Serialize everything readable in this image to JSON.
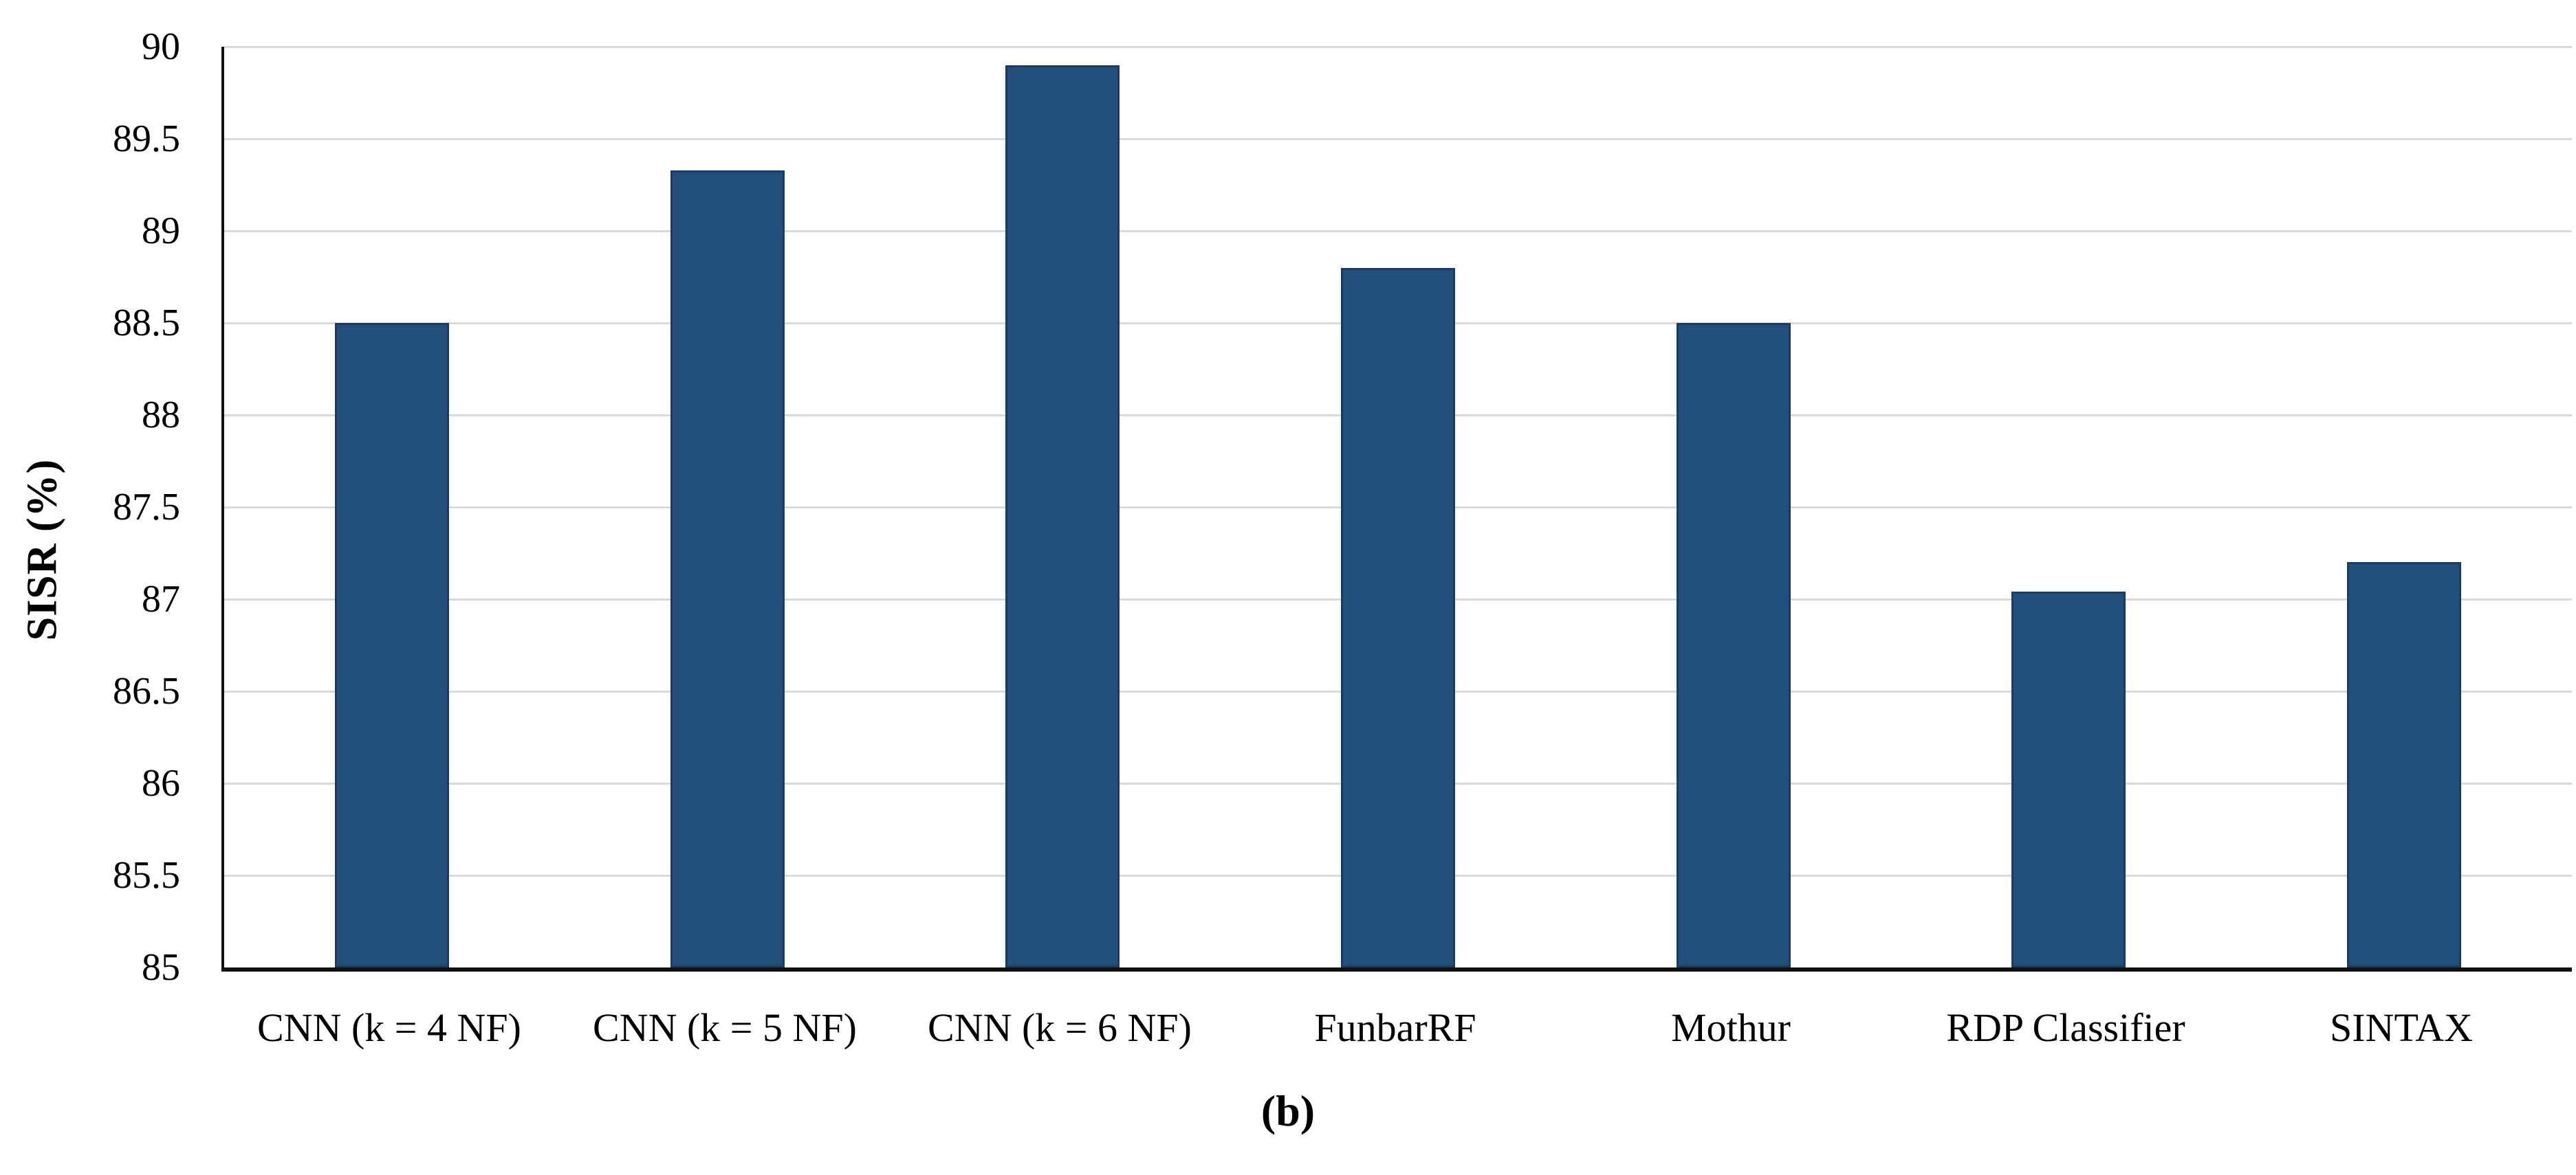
{
  "figure": {
    "caption": "(b)"
  },
  "chart_data": {
    "type": "bar",
    "title": "",
    "categories": [
      "CNN (k = 4 NF)",
      "CNN (k = 5 NF)",
      "CNN (k = 6 NF)",
      "FunbarRF",
      "Mothur",
      "RDP Classifier",
      "SINTAX"
    ],
    "values": [
      88.5,
      89.33,
      89.9,
      88.8,
      88.5,
      87.04,
      87.2
    ],
    "xlabel": "",
    "ylabel": "SISR (%)",
    "ylim": [
      85,
      90
    ],
    "ytick_step": 0.5,
    "ytick_labels": [
      "85",
      "85.5",
      "86",
      "86.5",
      "87",
      "87.5",
      "88",
      "88.5",
      "89",
      "89.5",
      "90"
    ],
    "grid": "horizontal gridlines at every 0.5",
    "legend": "none",
    "bar_color": "#21507A",
    "bar_border_color": "#1B3A66",
    "gridline_color": "#D9D9D9",
    "axis_color": "#111111"
  }
}
